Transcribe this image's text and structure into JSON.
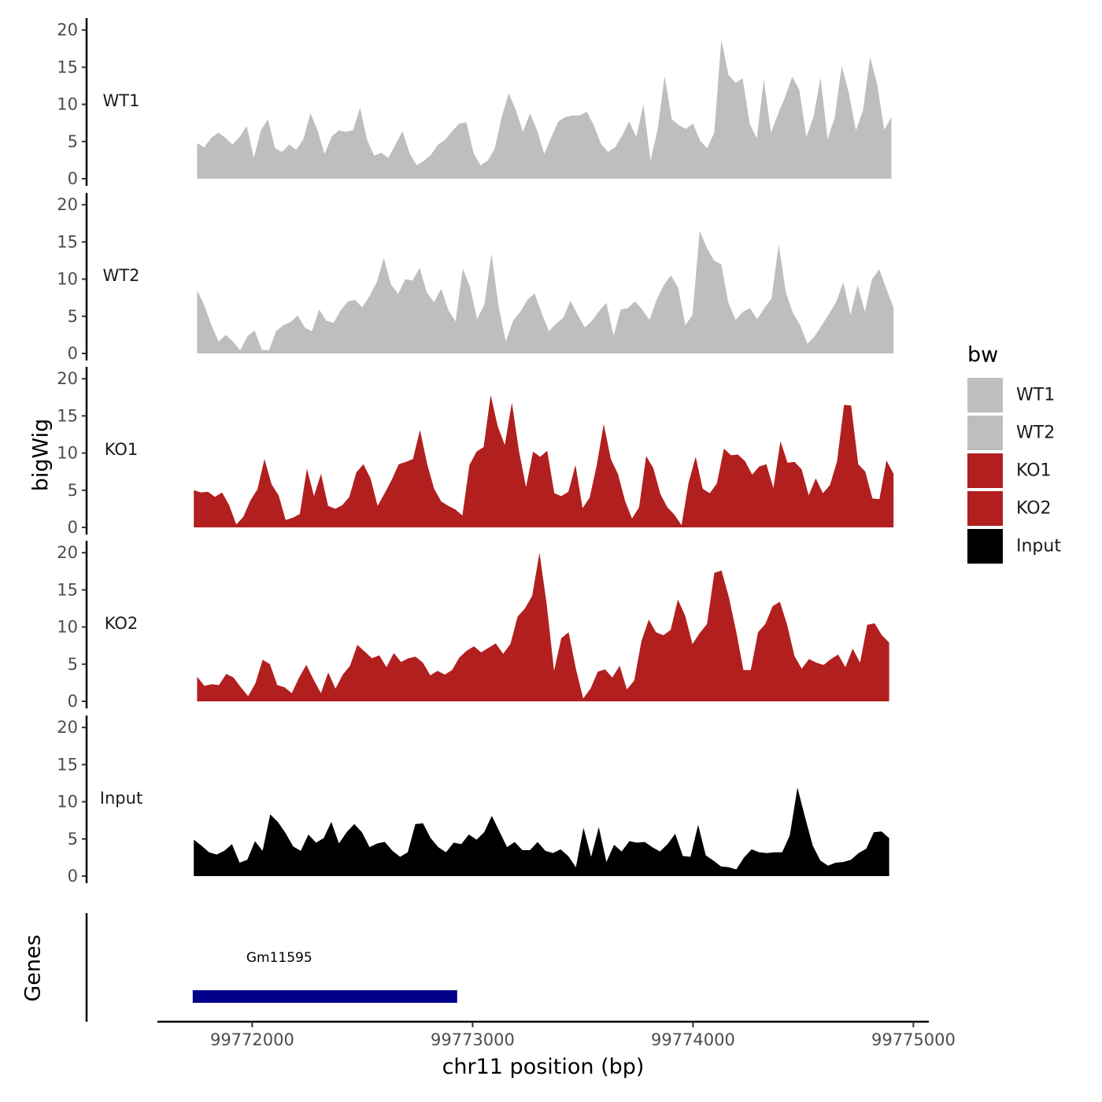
{
  "chart_data": {
    "type": "area",
    "ylabel": "bigWig",
    "genes_label": "Genes",
    "xlabel": "chr11 position (bp)",
    "xlim": [
      99771570,
      99775070
    ],
    "ylim": [
      0,
      21.5
    ],
    "x_ticks": [
      99772000,
      99773000,
      99774000,
      99775000
    ],
    "x_tick_labels": [
      "99772000",
      "99773000",
      "99774000",
      "99775000"
    ],
    "y_ticks": [
      0,
      5,
      10,
      15,
      20
    ],
    "y_tick_labels": [
      "0",
      "5",
      "10",
      "15",
      "20"
    ],
    "legend": {
      "title": "bw",
      "position": "right",
      "entries": [
        {
          "label": "WT1",
          "color": "#bebebe"
        },
        {
          "label": "WT2",
          "color": "#bebebe"
        },
        {
          "label": "KO1",
          "color": "#b21f1f"
        },
        {
          "label": "KO2",
          "color": "#b21f1f"
        },
        {
          "label": "Input",
          "color": "#000000"
        }
      ]
    },
    "series": [
      {
        "name": "WT1",
        "color": "#bebebe",
        "x_start": 99771750,
        "x_end": 99774900,
        "values": [
          4.8,
          4.2,
          5.5,
          6.2,
          5.5,
          4.6,
          5.6,
          7.1,
          2.8,
          6.5,
          8,
          4.1,
          3.6,
          4.6,
          3.9,
          5.3,
          8.8,
          6.5,
          3.3,
          5.7,
          6.5,
          6.3,
          6.5,
          9.5,
          5.2,
          3.1,
          3.5,
          2.8,
          4.6,
          6.4,
          3.4,
          1.8,
          2.4,
          3.2,
          4.6,
          5.2,
          6.4,
          7.4,
          7.6,
          3.5,
          1.8,
          2.4,
          4,
          8.3,
          11.5,
          9.2,
          6.3,
          8.8,
          6.5,
          3.3,
          5.6,
          7.7,
          8.3,
          8.5,
          8.5,
          9,
          7.2,
          4.7,
          3.6,
          4.2,
          5.8,
          7.7,
          5.6,
          10,
          2.4,
          6.6,
          13.8,
          8,
          7.2,
          6.7,
          7.4,
          5.1,
          4.1,
          6.2,
          18.7,
          14,
          12.9,
          13.5,
          7.4,
          5.4,
          13.4,
          6.2,
          8.7,
          11,
          13.7,
          12,
          5.6,
          8.3,
          13.6,
          5.3,
          8.2,
          15.2,
          11.5,
          6.5,
          9.2,
          16.4,
          12.7,
          6.6,
          8.3
        ]
      },
      {
        "name": "WT2",
        "color": "#bebebe",
        "x_start": 99771750,
        "x_end": 99774910,
        "values": [
          8.5,
          6.5,
          3.8,
          1.6,
          2.5,
          1.6,
          0.4,
          2.3,
          3.1,
          0.5,
          0.4,
          3,
          3.8,
          4.2,
          5.1,
          3.5,
          3,
          5.9,
          4.4,
          4.1,
          5.8,
          7,
          7.2,
          6.2,
          7.7,
          9.5,
          12.8,
          9.3,
          8,
          10,
          9.8,
          11.5,
          8.2,
          6.9,
          8.7,
          5.8,
          4.3,
          11.4,
          9,
          4.6,
          6.6,
          13.4,
          6.3,
          1.6,
          4.4,
          5.6,
          7.2,
          8.1,
          5.4,
          3,
          4,
          4.8,
          7.1,
          5.2,
          3.5,
          4.4,
          5.7,
          6.8,
          2.4,
          5.9,
          6.1,
          7,
          5.9,
          4.5,
          7.2,
          9.2,
          10.5,
          8.8,
          3.8,
          5.2,
          16.5,
          14.2,
          12.5,
          12,
          6.8,
          4.5,
          5.6,
          6.1,
          4.6,
          6.1,
          7.4,
          14.7,
          8.2,
          5.4,
          3.8,
          1.3,
          2.3,
          3.8,
          5.3,
          6.9,
          9.6,
          5.2,
          9.2,
          5.6,
          10,
          11.3,
          8.7,
          6.1
        ]
      },
      {
        "name": "KO1",
        "color": "#b21f1f",
        "x_start": 99771735,
        "x_end": 99774910,
        "values": [
          5,
          4.7,
          4.8,
          4.1,
          4.7,
          3,
          0.4,
          1.4,
          3.6,
          5.1,
          9.2,
          5.8,
          4.3,
          1,
          1.3,
          1.8,
          7.9,
          4.2,
          7.2,
          2.9,
          2.5,
          3,
          4.1,
          7.4,
          8.5,
          6.6,
          2.9,
          4.6,
          6.4,
          8.5,
          8.8,
          9.2,
          13.1,
          8.6,
          5.2,
          3.5,
          2.9,
          2.4,
          1.6,
          8.4,
          10.2,
          10.8,
          17.8,
          13.6,
          11.1,
          16.8,
          10.3,
          5.4,
          10.2,
          9.5,
          10.3,
          4.6,
          4.2,
          4.8,
          8.4,
          2.6,
          4,
          8.3,
          13.9,
          9.2,
          7.2,
          3.6,
          1.2,
          2.7,
          9.6,
          8,
          4.5,
          2.7,
          1.7,
          0.3,
          6,
          9.5,
          5.2,
          4.6,
          5.9,
          10.6,
          9.7,
          9.8,
          8.9,
          7.1,
          8.2,
          8.5,
          5.3,
          11.6,
          8.7,
          8.8,
          7.8,
          4.3,
          6.6,
          4.6,
          5.7,
          8.9,
          16.5,
          16.4,
          8.5,
          7.5,
          3.9,
          3.8,
          9,
          7.2
        ]
      },
      {
        "name": "KO2",
        "color": "#b21f1f",
        "x_start": 99771750,
        "x_end": 99774890,
        "values": [
          3.3,
          2.1,
          2.3,
          2.2,
          3.7,
          3.2,
          1.9,
          0.7,
          2.4,
          5.6,
          5,
          2.2,
          1.9,
          1.1,
          3.2,
          4.9,
          2.9,
          1.1,
          3.9,
          1.7,
          3.6,
          4.8,
          7.6,
          6.7,
          5.8,
          6.2,
          4.6,
          6.5,
          5.3,
          5.8,
          6,
          5.2,
          3.5,
          4.1,
          3.6,
          4.2,
          5.9,
          6.8,
          7.4,
          6.6,
          7.2,
          7.8,
          6.4,
          7.7,
          11.4,
          12.5,
          14.2,
          20,
          13,
          4.1,
          8.5,
          9.3,
          4.4,
          0.4,
          1.7,
          4,
          4.3,
          3.2,
          4.8,
          1.6,
          2.8,
          8.1,
          11,
          9.3,
          8.9,
          9.6,
          13.7,
          11.5,
          7.7,
          9.2,
          10.4,
          17.3,
          17.6,
          14,
          9.4,
          4.2,
          4.2,
          9.3,
          10.4,
          12.8,
          13.4,
          10.3,
          6.1,
          4.4,
          5.7,
          5.2,
          4.9,
          5.7,
          6.3,
          4.6,
          7.1,
          5.2,
          10.3,
          10.5,
          8.9,
          7.9
        ]
      },
      {
        "name": "Input",
        "color": "#000000",
        "x_start": 99771735,
        "x_end": 99774890,
        "values": [
          4.9,
          4.1,
          3.2,
          2.9,
          3.4,
          4.3,
          1.8,
          2.2,
          4.7,
          3.4,
          8.3,
          7.3,
          5.8,
          4,
          3.4,
          5.6,
          4.5,
          5.1,
          7.3,
          4.4,
          5.9,
          7,
          5.9,
          3.9,
          4.4,
          4.6,
          3.4,
          2.6,
          3.2,
          7,
          7.1,
          5.1,
          3.9,
          3.2,
          4.5,
          4.3,
          5.6,
          4.9,
          5.9,
          8.1,
          6,
          3.9,
          4.6,
          3.5,
          3.5,
          4.6,
          3.4,
          3.1,
          3.6,
          2.7,
          1.2,
          6.5,
          2.6,
          6.6,
          1.9,
          4.2,
          3.3,
          4.7,
          4.5,
          4.6,
          3.9,
          3.3,
          4.3,
          5.7,
          2.7,
          2.6,
          6.9,
          2.8,
          2.1,
          1.3,
          1.2,
          0.9,
          2.5,
          3.6,
          3.2,
          3.1,
          3.2,
          3.2,
          5.5,
          11.9,
          7.9,
          4.1,
          2.1,
          1.4,
          1.8,
          1.9,
          2.2,
          3.1,
          3.7,
          5.9,
          6,
          5.1
        ]
      }
    ],
    "genes": [
      {
        "name": "Gm11595",
        "start": 99771730,
        "end": 99772930,
        "color": "#00008b"
      }
    ]
  }
}
